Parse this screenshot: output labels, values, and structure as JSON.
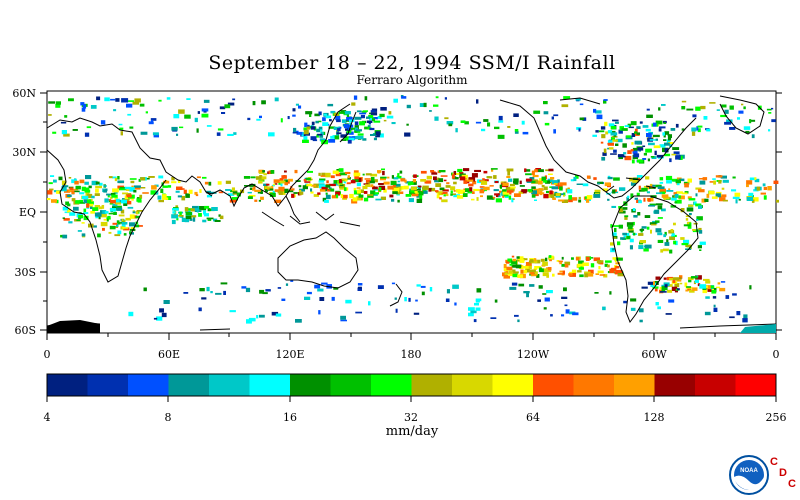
{
  "title": "September 18 – 22, 1994 SSM/I Rainfall",
  "subtitle": "Ferraro Algorithm",
  "map": {
    "lat_labels": [
      "60N",
      "30N",
      "EQ",
      "30S",
      "60S"
    ],
    "lon_labels": [
      "0",
      "60E",
      "120E",
      "180",
      "120W",
      "60W",
      "0"
    ]
  },
  "colorbar": {
    "tick_labels": [
      "4",
      "8",
      "16",
      "32",
      "64",
      "128",
      "256"
    ],
    "units": "mm/day",
    "colors": [
      "#002080",
      "#0030b0",
      "#0050ff",
      "#009898",
      "#00c8c8",
      "#00ffff",
      "#009000",
      "#00c000",
      "#00ff00",
      "#b0b000",
      "#d8d800",
      "#ffff00",
      "#ff5000",
      "#ff7800",
      "#ffa000",
      "#980000",
      "#c80000",
      "#ff0000"
    ]
  },
  "logo": {
    "name": "NOAA",
    "c1": "C",
    "c2": "D",
    "c3": "C"
  }
}
